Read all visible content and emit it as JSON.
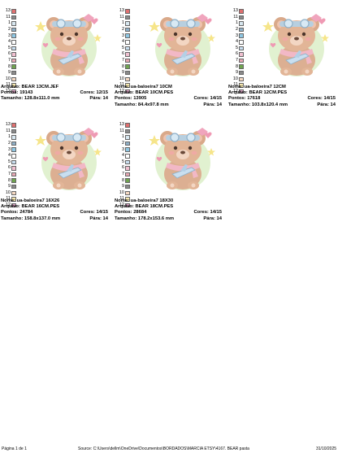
{
  "designs": [
    {
      "name": "",
      "file": "BEAR 13CM.JEF",
      "stitches": "19143",
      "size": "128.8x111.0 mm",
      "colors": "12/15",
      "stops": "14",
      "legend": [
        "13",
        "11",
        "1",
        "2",
        "3",
        "4",
        "5",
        "6",
        "7",
        "8",
        "9",
        "10",
        "11",
        "12"
      ]
    },
    {
      "name": "ua-baloeira7 10CM",
      "file": "BEAR 10CM.PES",
      "stitches": "13905",
      "size": "84.4x97.8 mm",
      "colors": "14/15",
      "stops": "14",
      "legend": [
        "13",
        "11",
        "1",
        "2",
        "3",
        "4",
        "5",
        "6",
        "7",
        "8",
        "9",
        "10",
        "11",
        "12"
      ]
    },
    {
      "name": "ua-baloeira7 12CM",
      "file": "BEAR 12CM.PES",
      "stitches": "17618",
      "size": "103.8x120.4 mm",
      "colors": "14/15",
      "stops": "14",
      "legend": [
        "13",
        "11",
        "1",
        "2",
        "3",
        "4",
        "5",
        "6",
        "7",
        "8",
        "9",
        "10",
        "11",
        "12"
      ]
    },
    {
      "name": "ua-baloeira7 16X26",
      "file": "BEAR 16CM.PES",
      "stitches": "24784",
      "size": "158.8x137.0 mm",
      "colors": "14/15",
      "stops": "14",
      "legend": [
        "13",
        "11",
        "1",
        "2",
        "3",
        "4",
        "5",
        "6",
        "7",
        "8",
        "9",
        "10",
        "11",
        "12"
      ]
    },
    {
      "name": "ua-baloeira7 18X30",
      "file": "BEAR 18CM.PES",
      "stitches": "28684",
      "size": "178.2x153.6 mm",
      "colors": "14/15",
      "stops": "14",
      "legend": [
        "13",
        "11",
        "1",
        "2",
        "3",
        "4",
        "5",
        "6",
        "7",
        "8",
        "9",
        "10",
        "11",
        "12"
      ]
    }
  ],
  "labels": {
    "name": "Nome: ",
    "file": "Arquivo: ",
    "stitches": "Pontos: ",
    "size": "Tamanho: ",
    "colors": "Cores: ",
    "stops": "Pára: "
  },
  "swatch_colors": [
    "#e07070",
    "#8a8a8a",
    "#d8e7f0",
    "#8fb0c8",
    "#8fc7e3",
    "#ffffff",
    "#c9dff0",
    "#f0c0d0",
    "#e8a8b4",
    "#6fa34f",
    "#8a8a8a",
    "#f4d8c2",
    "#f6e8b0",
    "#e0a8c8"
  ],
  "footer": {
    "page": "Página 1 de 1",
    "source": "Source: C:\\Users\\dellm\\OneDrive\\Documentos\\BORDADOS\\MARCIA ETSY\\4167. BEAR pasta",
    "date": "31/10/2025"
  }
}
